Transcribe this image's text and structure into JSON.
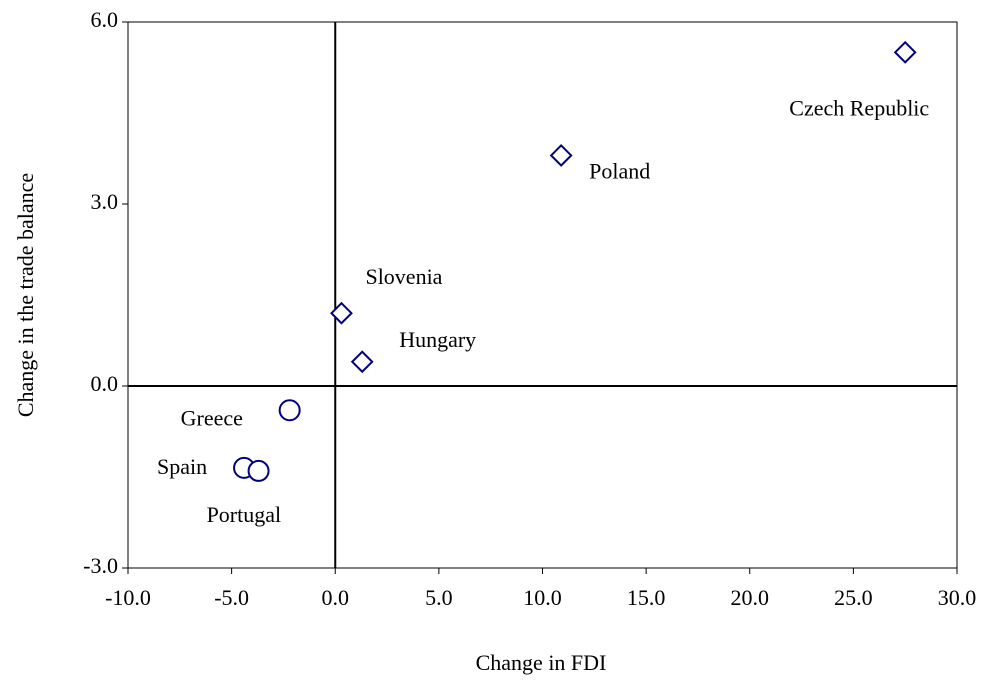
{
  "chart_data": {
    "type": "scatter",
    "x_label": "Change in FDI",
    "y_label": "Change in the trade balance",
    "xlim": [
      -10,
      30
    ],
    "ylim": [
      -3,
      6
    ],
    "xticks": [
      {
        "value": -10,
        "label": "-10.0"
      },
      {
        "value": -5,
        "label": "-5.0"
      },
      {
        "value": 0,
        "label": "0.0"
      },
      {
        "value": 5,
        "label": "5.0"
      },
      {
        "value": 10,
        "label": "10.0"
      },
      {
        "value": 15,
        "label": "15.0"
      },
      {
        "value": 20,
        "label": "20.0"
      },
      {
        "value": 25,
        "label": "25.0"
      },
      {
        "value": 30,
        "label": "30.0"
      }
    ],
    "yticks": [
      {
        "value": -3,
        "label": "-3.0"
      },
      {
        "value": 0,
        "label": "0.0"
      },
      {
        "value": 3,
        "label": "3.0"
      },
      {
        "value": 6,
        "label": "6.0"
      }
    ],
    "series": [
      {
        "marker": "diamond",
        "color": "#000080",
        "labels": [
          "Czech Republic",
          "Poland",
          "Slovenia",
          "Hungary"
        ],
        "x": [
          27.5,
          10.9,
          0.3,
          1.3
        ],
        "values": [
          5.5,
          3.8,
          1.2,
          0.4
        ]
      },
      {
        "marker": "circle",
        "color": "#000080",
        "labels": [
          "Greece",
          "Spain",
          "Portugal"
        ],
        "x": [
          -2.2,
          -4.4,
          -3.7
        ],
        "values": [
          -0.4,
          -1.35,
          -1.4
        ]
      }
    ]
  }
}
